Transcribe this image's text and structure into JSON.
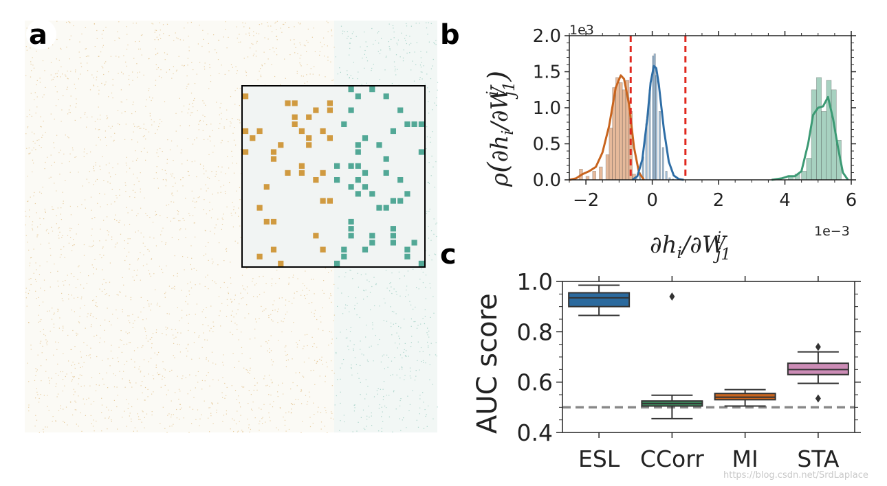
{
  "panel_labels": {
    "a": "a",
    "b": "b",
    "c": "c"
  },
  "watermark": "https://blog.csdn.net/SrdLaplace",
  "colors": {
    "orange": "#c8641e",
    "blue": "#2f6ea6",
    "green": "#3c9a74",
    "gold": "#d09a40",
    "teal": "#52a896",
    "red_dash": "#e0281e",
    "grey_dash": "#888888",
    "box_esl": "#2b6a9e",
    "box_ccorr": "#3d8c5e",
    "box_mi": "#c8641e",
    "box_sta": "#cc8cb6"
  },
  "chart_data": [
    {
      "id": "a",
      "type": "heatmap",
      "title": "",
      "description_keys": {
        "left_color": "gold",
        "right_color": "teal"
      },
      "inset_grid": {
        "rows": 26,
        "cols": 26,
        "split_col": 13
      }
    },
    {
      "id": "b",
      "type": "area",
      "title": "",
      "ylabel": "ρ(∂h_i/∂W_j1^i)",
      "xlabel_parts": {
        "num": "∂h",
        "num_sub": "i",
        "den": "/∂W",
        "den_sub": "j1",
        "den_sup": "i"
      },
      "ylabel_parts": {
        "rho": "ρ",
        "open": "(",
        "a": "∂h",
        "a_sub": "i",
        "b": "/∂W",
        "b_sub": "j1",
        "b_sup": "i",
        "close": ")"
      },
      "x_scale_text": "1e−3",
      "y_scale_text": "1e3",
      "xlim": [
        -2.5,
        6.0
      ],
      "ylim": [
        0,
        2.0
      ],
      "xticks": [
        -2,
        0,
        2,
        4,
        6
      ],
      "xtick_labels": [
        "−2",
        "0",
        "2",
        "4",
        "6"
      ],
      "yticks": [
        0.0,
        0.5,
        1.0,
        1.5,
        2.0
      ],
      "ytick_labels": [
        "0.0",
        "0.5",
        "1.0",
        "1.5",
        "2.0"
      ],
      "vlines": [
        -0.65,
        1.0
      ],
      "series": [
        {
          "name": "orange",
          "kde_x": [
            -2.5,
            -2.3,
            -2.1,
            -1.9,
            -1.7,
            -1.5,
            -1.3,
            -1.1,
            -0.95,
            -0.85,
            -0.7,
            -0.55,
            -0.4,
            -0.25
          ],
          "kde_y": [
            0.0,
            0.02,
            0.08,
            0.12,
            0.18,
            0.38,
            0.75,
            1.28,
            1.45,
            1.4,
            1.05,
            0.45,
            0.1,
            0.0
          ],
          "hist_left": [
            -2.2,
            -2.0,
            -1.8,
            -1.6,
            -1.4,
            -1.3,
            -1.2,
            -1.1,
            -1.0,
            -0.9,
            -0.8,
            -0.7,
            -0.6
          ],
          "hist_height": [
            0.15,
            0.05,
            0.12,
            0.18,
            0.35,
            0.72,
            1.28,
            1.42,
            1.35,
            1.25,
            1.38,
            0.95,
            0.08
          ],
          "hist_width": 0.1
        },
        {
          "name": "blue",
          "kde_x": [
            -0.6,
            -0.45,
            -0.3,
            -0.15,
            -0.05,
            0.05,
            0.12,
            0.2,
            0.35,
            0.5,
            0.65,
            0.8,
            0.95
          ],
          "kde_y": [
            0.0,
            0.05,
            0.28,
            0.85,
            1.35,
            1.58,
            1.55,
            1.32,
            0.7,
            0.25,
            0.06,
            0.01,
            0.0
          ],
          "hist_left": [
            -0.5,
            -0.4,
            -0.3,
            -0.2,
            -0.1,
            0.0,
            0.05,
            0.1,
            0.2,
            0.3,
            0.4,
            0.5,
            0.6
          ],
          "hist_height": [
            0.02,
            0.1,
            0.32,
            0.78,
            1.25,
            1.72,
            1.75,
            1.45,
            0.95,
            0.45,
            0.12,
            0.03,
            0.01
          ],
          "hist_width": 0.05
        },
        {
          "name": "green",
          "kde_x": [
            3.6,
            3.9,
            4.1,
            4.3,
            4.5,
            4.7,
            4.85,
            5.0,
            5.15,
            5.3,
            5.45,
            5.6,
            5.75,
            5.9
          ],
          "kde_y": [
            0.0,
            0.02,
            0.05,
            0.05,
            0.12,
            0.5,
            0.9,
            1.0,
            1.02,
            1.15,
            0.85,
            0.45,
            0.1,
            0.0
          ],
          "hist_left": [
            4.1,
            4.3,
            4.5,
            4.65,
            4.8,
            4.95,
            5.1,
            5.25,
            5.4,
            5.55
          ],
          "hist_height": [
            0.05,
            0.08,
            0.12,
            0.3,
            1.25,
            1.42,
            0.95,
            1.38,
            1.25,
            0.55
          ],
          "hist_width": 0.15
        }
      ]
    },
    {
      "id": "c",
      "type": "box",
      "title": "",
      "ylabel": "AUC score",
      "categories": [
        "ESL",
        "CCorr",
        "MI",
        "STA"
      ],
      "ylim": [
        0.4,
        1.0
      ],
      "yticks": [
        0.4,
        0.6,
        0.8,
        1.0
      ],
      "ytick_labels": [
        "0.4",
        "0.6",
        "0.8",
        "1.0"
      ],
      "hline": 0.5,
      "boxes": [
        {
          "name": "ESL",
          "whislo": 0.865,
          "q1": 0.9,
          "med": 0.935,
          "q3": 0.955,
          "whishi": 0.985,
          "fliers": []
        },
        {
          "name": "CCorr",
          "whislo": 0.455,
          "q1": 0.505,
          "med": 0.515,
          "q3": 0.525,
          "whishi": 0.548,
          "fliers": [
            0.94
          ]
        },
        {
          "name": "MI",
          "whislo": 0.505,
          "q1": 0.53,
          "med": 0.54,
          "q3": 0.555,
          "whishi": 0.57,
          "fliers": []
        },
        {
          "name": "STA",
          "whislo": 0.595,
          "q1": 0.63,
          "med": 0.65,
          "q3": 0.675,
          "whishi": 0.72,
          "fliers": [
            0.74,
            0.535
          ]
        }
      ]
    }
  ]
}
